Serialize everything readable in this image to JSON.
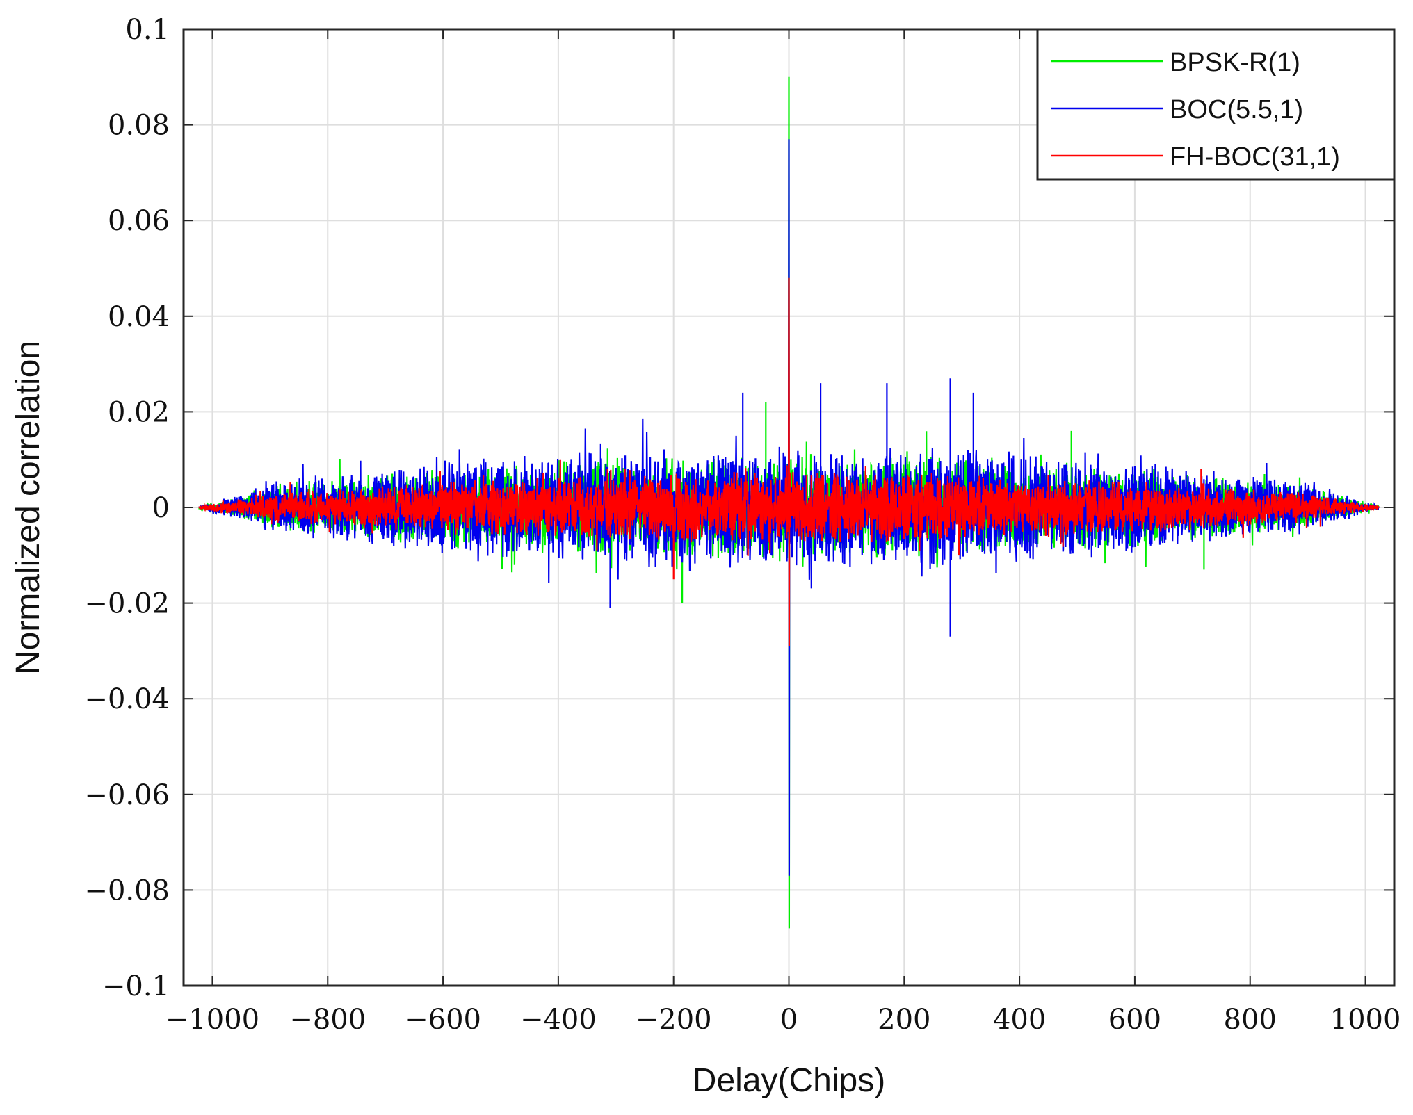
{
  "chart_data": {
    "type": "line",
    "xlabel": "Delay(Chips)",
    "ylabel": "Normalized correlation",
    "xlim": [
      -1050,
      1050
    ],
    "ylim": [
      -0.1,
      0.1
    ],
    "grid": true,
    "legend_position": "top-right",
    "x_ticks": [
      -1000,
      -800,
      -600,
      -400,
      -200,
      0,
      200,
      400,
      600,
      800,
      1000
    ],
    "x_tick_labels": [
      "−1000",
      "−800",
      "−600",
      "−400",
      "−200",
      "0",
      "200",
      "400",
      "600",
      "800",
      "1000"
    ],
    "y_ticks": [
      0.1,
      0.08,
      0.06,
      0.04,
      0.02,
      0,
      -0.02,
      -0.04,
      -0.06,
      -0.08,
      -0.1
    ],
    "y_tick_labels": [
      "0.1",
      "0.08",
      "0.06",
      "0.04",
      "0.02",
      "0",
      "−0.02",
      "−0.04",
      "−0.06",
      "−0.08",
      "−0.1"
    ],
    "x_range": [
      -1023,
      1023
    ],
    "series": [
      {
        "name": "BPSK-R(1)",
        "color": "#00ee00",
        "peak_positive": 0.09,
        "peak_negative": -0.088,
        "envelope": [
          [
            -1023,
            0.0005
          ],
          [
            -900,
            0.006
          ],
          [
            -600,
            0.011
          ],
          [
            -300,
            0.014
          ],
          [
            0,
            0.014
          ],
          [
            300,
            0.014
          ],
          [
            600,
            0.011
          ],
          [
            900,
            0.006
          ],
          [
            1023,
            0.0005
          ]
        ],
        "notable_spikes": [
          [
            -40,
            0.022
          ],
          [
            -185,
            -0.02
          ],
          [
            720,
            -0.013
          ],
          [
            490,
            0.016
          ]
        ]
      },
      {
        "name": "BOC(5.5,1)",
        "color": "#0000ee",
        "peak_positive": 0.077,
        "peak_negative": -0.077,
        "envelope": [
          [
            -1023,
            0.0005
          ],
          [
            -900,
            0.007
          ],
          [
            -600,
            0.013
          ],
          [
            -300,
            0.016
          ],
          [
            0,
            0.017
          ],
          [
            300,
            0.017
          ],
          [
            600,
            0.013
          ],
          [
            900,
            0.007
          ],
          [
            1023,
            0.0005
          ]
        ],
        "notable_spikes": [
          [
            -80,
            0.024
          ],
          [
            280,
            0.027
          ],
          [
            280,
            -0.027
          ],
          [
            320,
            0.024
          ],
          [
            -310,
            -0.021
          ],
          [
            55,
            0.026
          ],
          [
            170,
            0.026
          ]
        ]
      },
      {
        "name": "FH-BOC(31,1)",
        "color": "#ff0000",
        "peak_positive": 0.048,
        "peak_negative": -0.029,
        "envelope": [
          [
            -1023,
            0.0004
          ],
          [
            -900,
            0.004
          ],
          [
            -600,
            0.007
          ],
          [
            -300,
            0.009
          ],
          [
            0,
            0.01
          ],
          [
            300,
            0.009
          ],
          [
            600,
            0.007
          ],
          [
            900,
            0.004
          ],
          [
            1023,
            0.0004
          ]
        ],
        "notable_spikes": [
          [
            -200,
            -0.015
          ],
          [
            715,
            0.008
          ]
        ]
      }
    ]
  }
}
